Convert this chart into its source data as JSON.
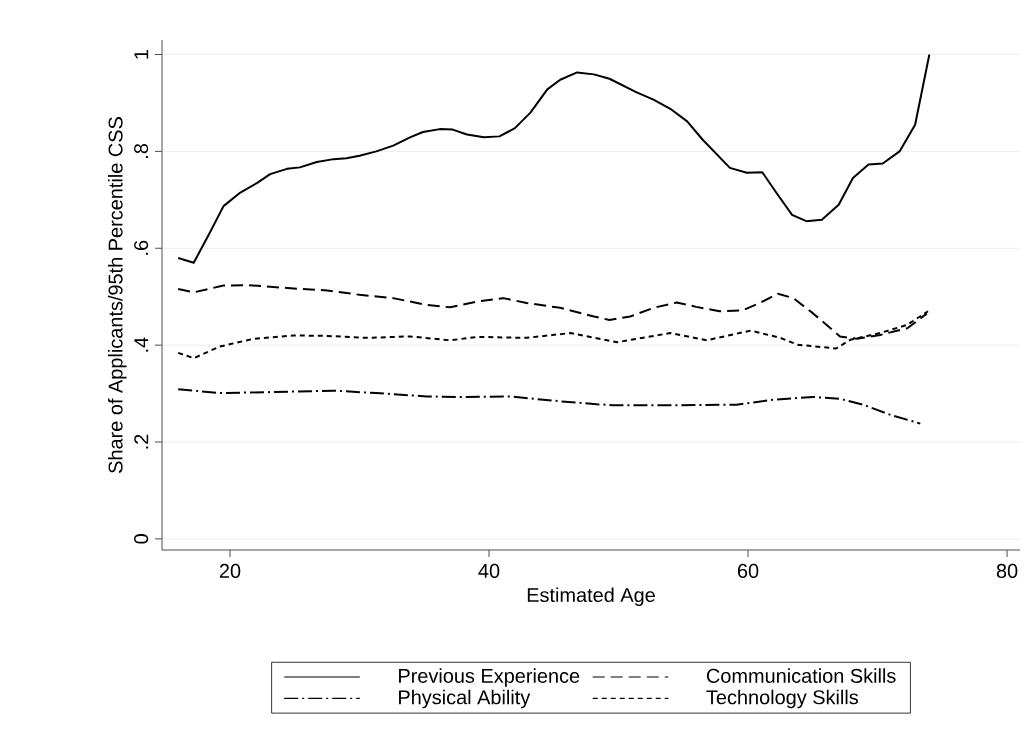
{
  "chart_data": {
    "type": "line",
    "xlabel": "Estimated Age",
    "ylabel": "Share of Applicants/95th Percentile CSS",
    "xlim": [
      14.75,
      81
    ],
    "ylim": [
      -0.023,
      1.03
    ],
    "xticks": [
      20,
      40,
      60,
      80
    ],
    "yticks": [
      0,
      {
        "value": 0.2,
        "label": ".2"
      },
      {
        "value": 0.4,
        "label": ".4"
      },
      {
        "value": 0.6,
        "label": ".6"
      },
      {
        "value": 0.8,
        "label": ".8"
      },
      1
    ],
    "grid": "y",
    "legend": "bottom",
    "series": [
      {
        "name": "Previous Experience",
        "color": "#000000",
        "line_style": "solid",
        "x": [
          16.0,
          17.2,
          18.5,
          19.5,
          20.8,
          22.1,
          23.1,
          24.4,
          25.4,
          26.7,
          28.0,
          29.0,
          30.0,
          31.3,
          32.6,
          33.9,
          34.9,
          36.2,
          37.2,
          38.3,
          39.6,
          40.8,
          42.0,
          43.2,
          44.5,
          45.5,
          46.8,
          48.1,
          49.3,
          51.4,
          52.7,
          54.0,
          55.3,
          56.5,
          58.6,
          59.9,
          61.1,
          62.2,
          63.4,
          64.5,
          65.7,
          67.0,
          68.1,
          69.3,
          70.4,
          71.7,
          72.9,
          74.0
        ],
        "values": [
          0.58,
          0.57,
          0.635,
          0.687,
          0.715,
          0.735,
          0.753,
          0.764,
          0.767,
          0.778,
          0.784,
          0.786,
          0.791,
          0.8,
          0.812,
          0.829,
          0.84,
          0.846,
          0.845,
          0.835,
          0.829,
          0.831,
          0.848,
          0.88,
          0.928,
          0.948,
          0.963,
          0.959,
          0.95,
          0.922,
          0.907,
          0.888,
          0.862,
          0.824,
          0.766,
          0.756,
          0.757,
          0.714,
          0.669,
          0.656,
          0.659,
          0.69,
          0.745,
          0.773,
          0.775,
          0.8,
          0.855,
          1.0
        ]
      },
      {
        "name": "Communication Skills",
        "color": "#000000",
        "line_style": "dashed",
        "x": [
          16.0,
          17.2,
          19.5,
          21.3,
          24.9,
          27.5,
          30.0,
          32.6,
          35.2,
          37.0,
          39.1,
          41.1,
          42.9,
          45.5,
          48.1,
          49.3,
          50.9,
          52.7,
          54.5,
          56.0,
          57.8,
          59.6,
          60.9,
          62.3,
          63.5,
          65.0,
          67.1,
          68.4,
          70.2,
          72.3,
          73.8
        ],
        "values": [
          0.516,
          0.509,
          0.523,
          0.524,
          0.517,
          0.513,
          0.504,
          0.497,
          0.483,
          0.478,
          0.49,
          0.497,
          0.487,
          0.477,
          0.459,
          0.452,
          0.459,
          0.477,
          0.488,
          0.479,
          0.47,
          0.472,
          0.487,
          0.506,
          0.497,
          0.466,
          0.418,
          0.413,
          0.421,
          0.435,
          0.465
        ]
      },
      {
        "name": "Physical Ability",
        "color": "#000000",
        "line_style": "dashdot",
        "x": [
          16.0,
          19.2,
          23.1,
          28.0,
          31.3,
          35.2,
          37.8,
          41.6,
          45.5,
          48.3,
          49.6,
          54.7,
          59.1,
          61.9,
          65.0,
          67.1,
          68.9,
          71.0,
          73.3
        ],
        "values": [
          0.309,
          0.301,
          0.303,
          0.306,
          0.301,
          0.294,
          0.293,
          0.294,
          0.284,
          0.278,
          0.276,
          0.276,
          0.277,
          0.287,
          0.293,
          0.289,
          0.277,
          0.256,
          0.238
        ]
      },
      {
        "name": "Technology Skills",
        "color": "#000000",
        "line_style": "dotted",
        "x": [
          16.0,
          17.2,
          19.2,
          21.8,
          24.9,
          27.5,
          30.6,
          33.9,
          37.0,
          39.1,
          42.9,
          46.3,
          49.9,
          54.0,
          56.8,
          60.2,
          62.5,
          63.8,
          66.8,
          67.9,
          70.2,
          72.3,
          73.9
        ],
        "values": [
          0.384,
          0.373,
          0.397,
          0.413,
          0.42,
          0.419,
          0.415,
          0.418,
          0.41,
          0.417,
          0.415,
          0.425,
          0.406,
          0.425,
          0.41,
          0.43,
          0.415,
          0.401,
          0.393,
          0.411,
          0.425,
          0.442,
          0.47
        ]
      }
    ]
  }
}
